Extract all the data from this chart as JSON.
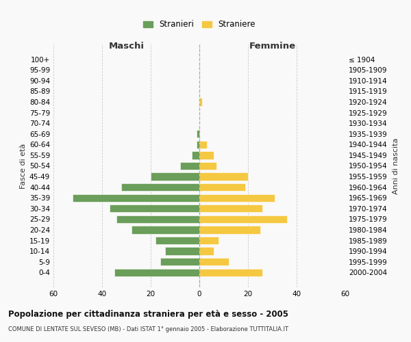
{
  "age_groups": [
    "100+",
    "95-99",
    "90-94",
    "85-89",
    "80-84",
    "75-79",
    "70-74",
    "65-69",
    "60-64",
    "55-59",
    "50-54",
    "45-49",
    "40-44",
    "35-39",
    "30-34",
    "25-29",
    "20-24",
    "15-19",
    "10-14",
    "5-9",
    "0-4"
  ],
  "birth_years": [
    "≤ 1904",
    "1905-1909",
    "1910-1914",
    "1915-1919",
    "1920-1924",
    "1925-1929",
    "1930-1934",
    "1935-1939",
    "1940-1944",
    "1945-1949",
    "1950-1954",
    "1955-1959",
    "1960-1964",
    "1965-1969",
    "1970-1974",
    "1975-1979",
    "1980-1984",
    "1985-1989",
    "1990-1994",
    "1995-1999",
    "2000-2004"
  ],
  "maschi": [
    0,
    0,
    0,
    0,
    0,
    0,
    0,
    1,
    1,
    3,
    8,
    20,
    32,
    52,
    37,
    34,
    28,
    18,
    14,
    16,
    35
  ],
  "femmine": [
    0,
    0,
    0,
    0,
    1,
    0,
    0,
    0,
    3,
    6,
    7,
    20,
    19,
    31,
    26,
    36,
    25,
    8,
    6,
    12,
    26
  ],
  "male_color": "#6a9e5a",
  "female_color": "#f5c842",
  "bg_color": "#f9f9f9",
  "grid_color": "#cccccc",
  "title": "Popolazione per cittadinanza straniera per età e sesso - 2005",
  "subtitle": "COMUNE DI LENTATE SUL SEVESO (MB) - Dati ISTAT 1° gennaio 2005 - Elaborazione TUTTITALIA.IT",
  "xlabel_left": "Maschi",
  "xlabel_right": "Femmine",
  "ylabel_left": "Fasce di età",
  "ylabel_right": "Anni di nascita",
  "legend_male": "Stranieri",
  "legend_female": "Straniere",
  "xlim": 60
}
